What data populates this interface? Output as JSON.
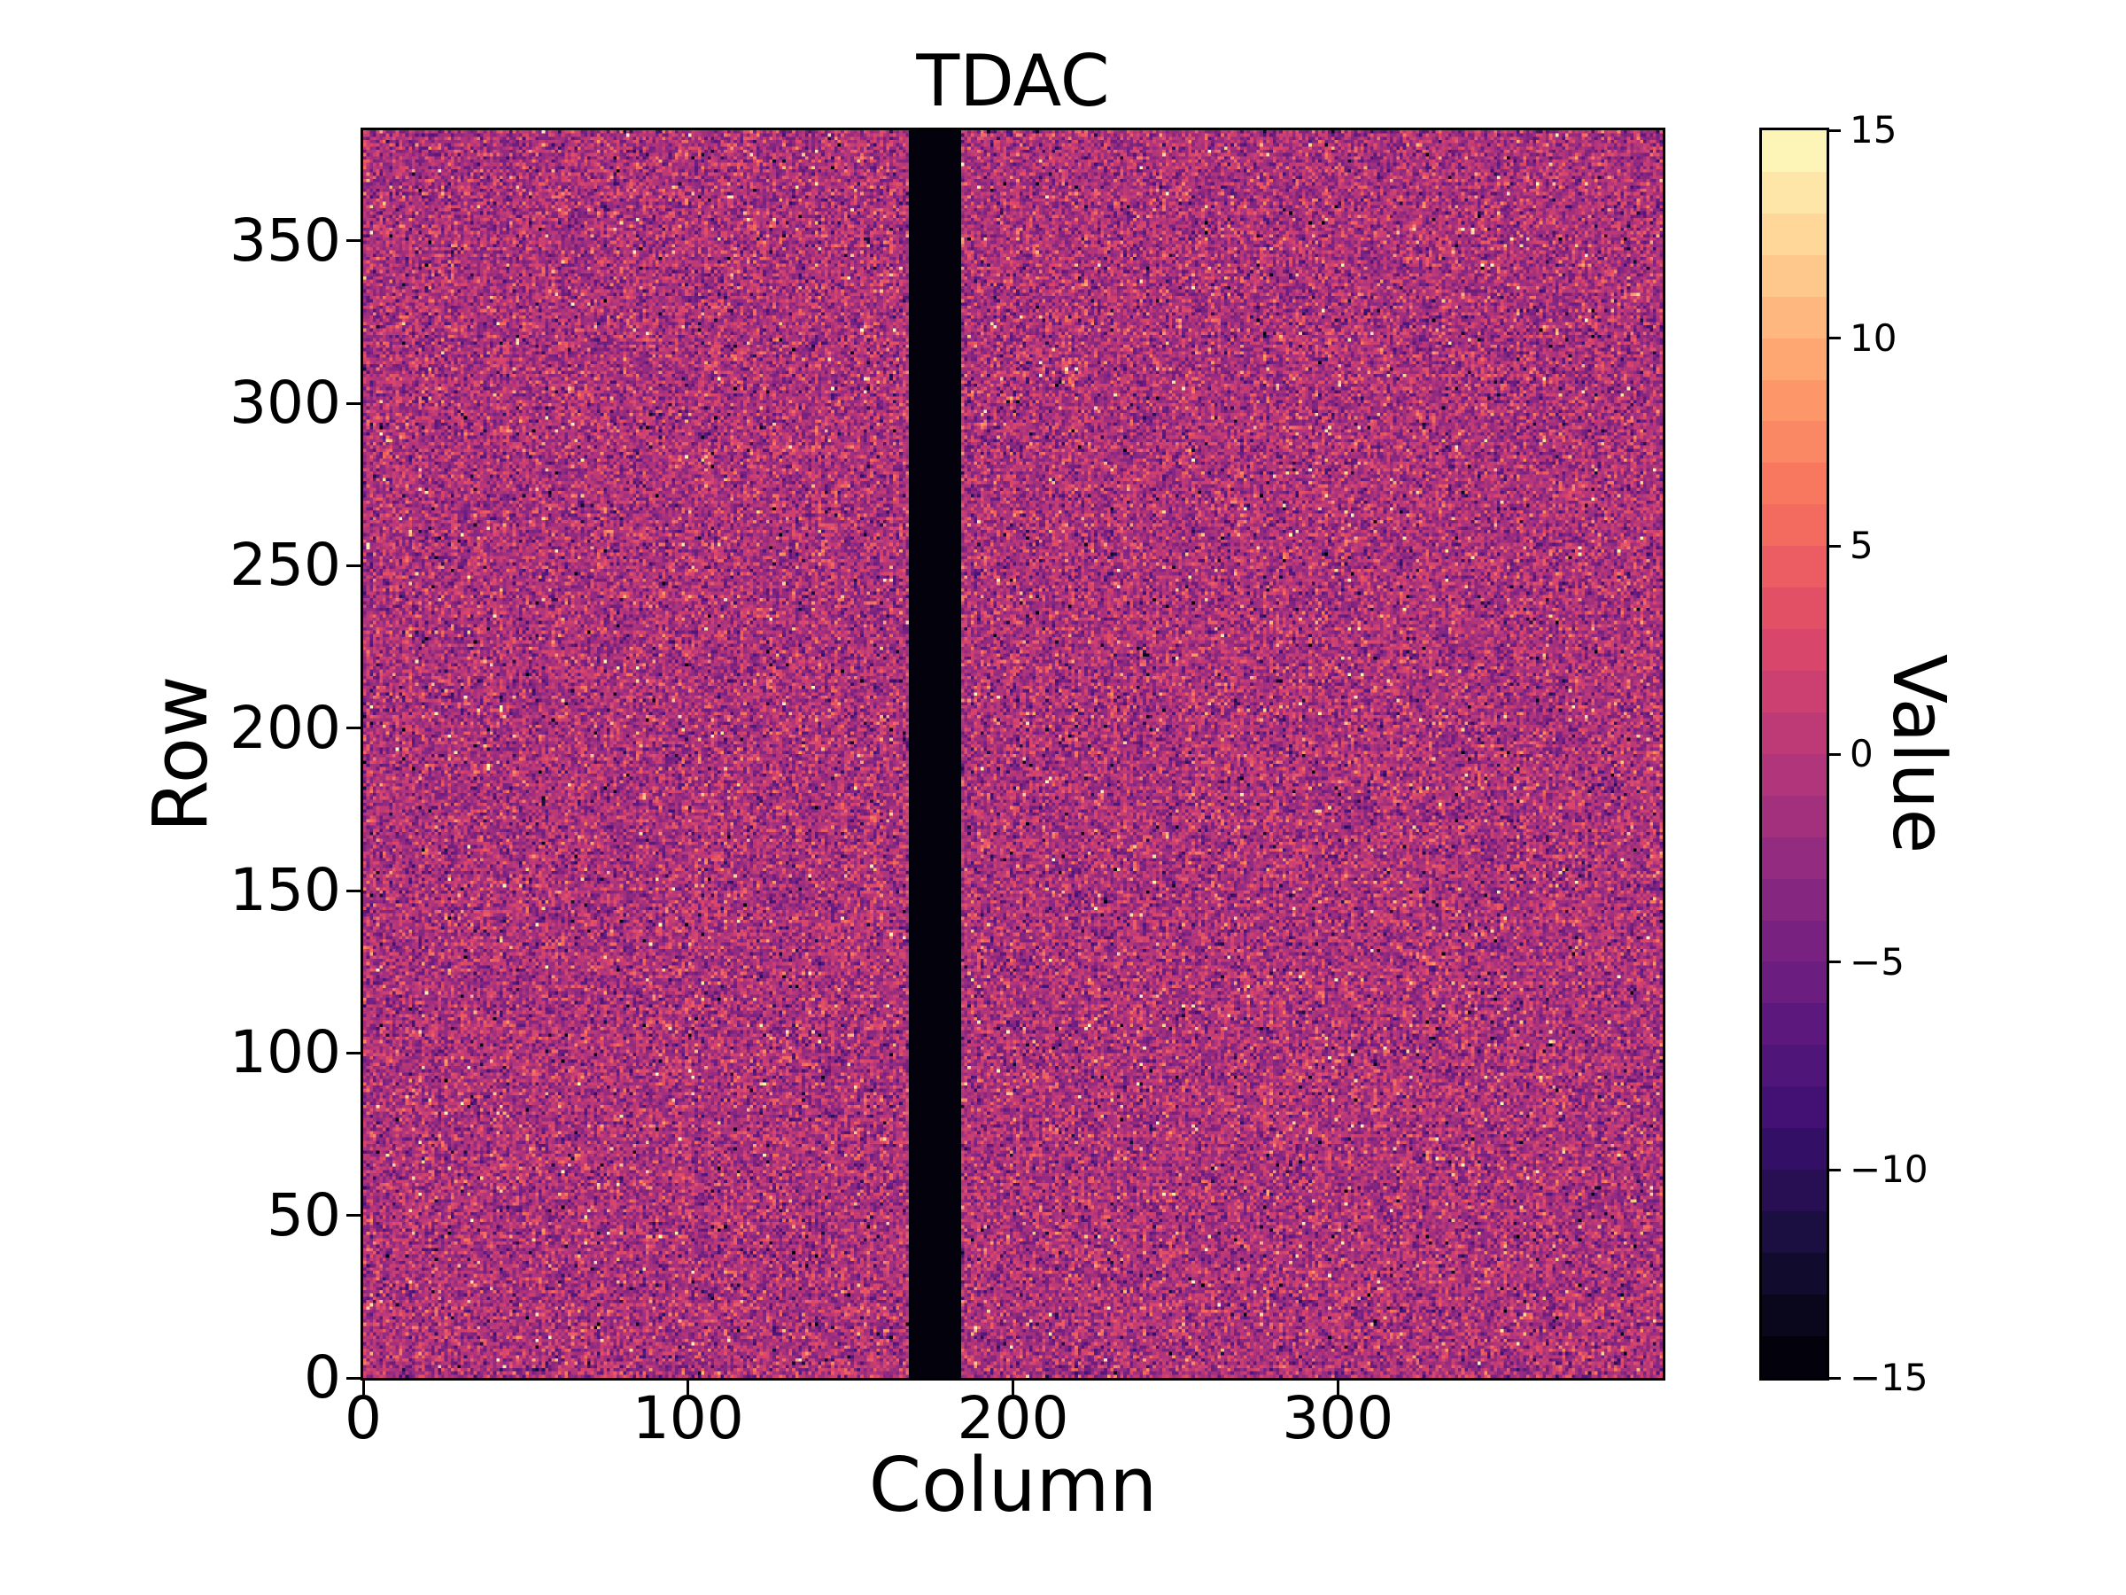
{
  "figure": {
    "background_color": "#ffffff",
    "text_color": "#000000"
  },
  "chart_data": {
    "type": "heatmap",
    "title": "TDAC",
    "xlabel": "Column",
    "ylabel": "Row",
    "colorbar_label": "Value",
    "xlim": [
      0,
      400
    ],
    "ylim": [
      0,
      384
    ],
    "cols": 400,
    "rows": 384,
    "x_ticks": [
      0,
      100,
      200,
      300
    ],
    "x_tick_labels": [
      "0",
      "100",
      "200",
      "300"
    ],
    "y_ticks": [
      0,
      50,
      100,
      150,
      200,
      250,
      300,
      350
    ],
    "y_tick_labels": [
      "0",
      "50",
      "100",
      "150",
      "200",
      "250",
      "300",
      "350"
    ],
    "colorbar_ticks": [
      15,
      10,
      5,
      0,
      -5,
      -10,
      -15
    ],
    "colorbar_tick_labels": [
      "15",
      "10",
      "5",
      "0",
      "−5",
      "−10",
      "−15"
    ],
    "vmin": -15,
    "vmax": 15,
    "n_color_levels": 30,
    "colormap": "magma",
    "colormap_stops": [
      {
        "t": 0.0,
        "hex": "#000004"
      },
      {
        "t": 0.1,
        "hex": "#140e36"
      },
      {
        "t": 0.2,
        "hex": "#3b0f70"
      },
      {
        "t": 0.3,
        "hex": "#641a80"
      },
      {
        "t": 0.4,
        "hex": "#8c2981"
      },
      {
        "t": 0.5,
        "hex": "#b73779"
      },
      {
        "t": 0.6,
        "hex": "#de4968"
      },
      {
        "t": 0.7,
        "hex": "#f7705c"
      },
      {
        "t": 0.8,
        "hex": "#fe9f6d"
      },
      {
        "t": 0.9,
        "hex": "#fecf92"
      },
      {
        "t": 1.0,
        "hex": "#fcfdbf"
      }
    ],
    "dead_band": {
      "col_start": 168,
      "col_end": 184,
      "value": -15
    },
    "noise": {
      "mean": -0.8,
      "std": 3.3,
      "outlier_fraction": 0.03,
      "seed": 1337
    }
  }
}
